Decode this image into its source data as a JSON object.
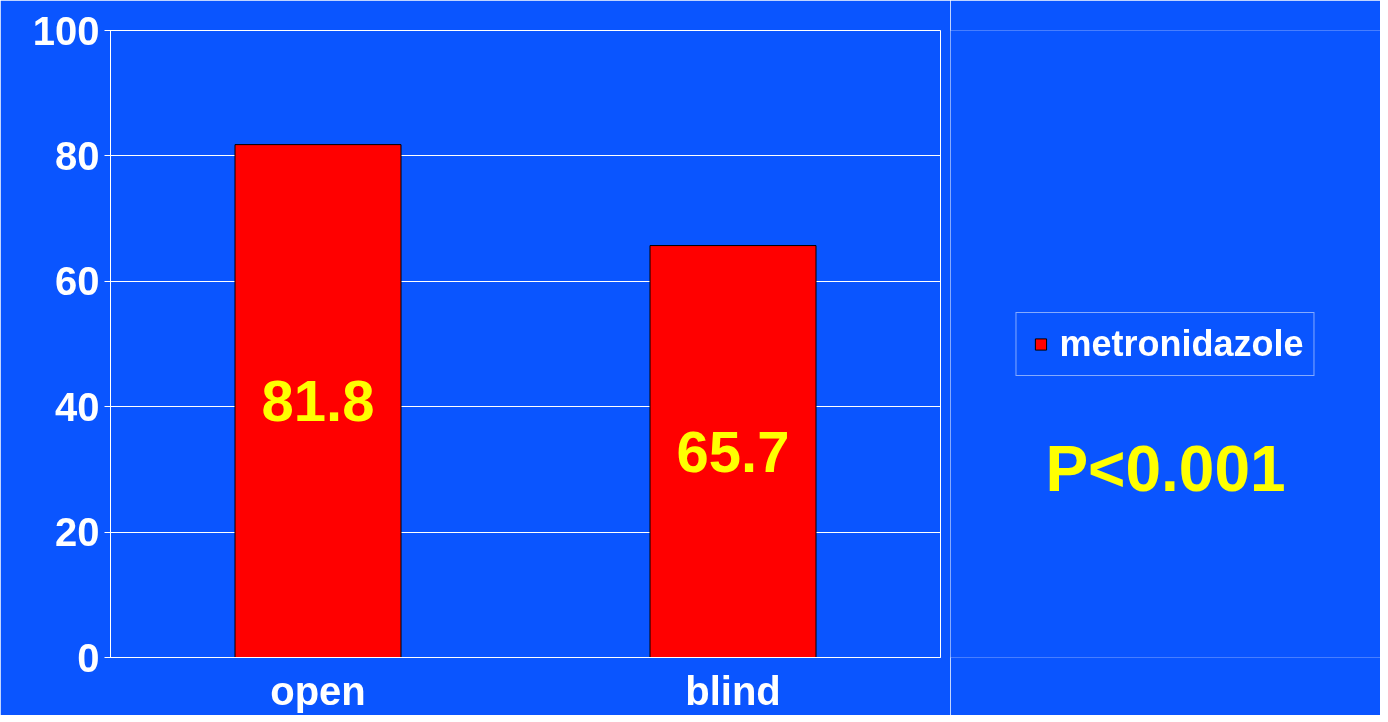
{
  "chart_data": {
    "type": "bar",
    "categories": [
      "open",
      "blind"
    ],
    "series": [
      {
        "name": "metronidazole",
        "color": "#ff0000",
        "values": [
          81.8,
          65.7
        ]
      }
    ],
    "data_labels": true,
    "ylim": [
      0,
      100
    ],
    "yticks": [
      0,
      20,
      40,
      60,
      80,
      100
    ],
    "grid": "y",
    "legend": "right",
    "annotations": [
      "P<0.001"
    ]
  }
}
